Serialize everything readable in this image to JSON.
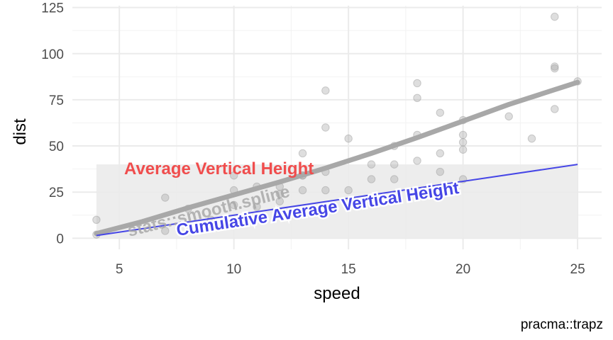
{
  "chart_data": {
    "type": "scatter",
    "xlabel": "speed",
    "ylabel": "dist",
    "caption": "pracma::trapz",
    "xlim": [
      2.95,
      26.05
    ],
    "ylim": [
      -6,
      126
    ],
    "xticks": [
      5,
      10,
      15,
      20,
      25
    ],
    "yticks": [
      0,
      25,
      50,
      75,
      100,
      125
    ],
    "grid": true,
    "points": [
      [
        4,
        2
      ],
      [
        4,
        10
      ],
      [
        7,
        4
      ],
      [
        7,
        22
      ],
      [
        8,
        16
      ],
      [
        9,
        10
      ],
      [
        10,
        18
      ],
      [
        10,
        26
      ],
      [
        10,
        34
      ],
      [
        11,
        17
      ],
      [
        11,
        28
      ],
      [
        12,
        14
      ],
      [
        12,
        20
      ],
      [
        12,
        24
      ],
      [
        12,
        28
      ],
      [
        13,
        26
      ],
      [
        13,
        34
      ],
      [
        13,
        34
      ],
      [
        13,
        46
      ],
      [
        14,
        26
      ],
      [
        14,
        36
      ],
      [
        14,
        60
      ],
      [
        14,
        80
      ],
      [
        15,
        20
      ],
      [
        15,
        26
      ],
      [
        15,
        54
      ],
      [
        16,
        32
      ],
      [
        16,
        40
      ],
      [
        17,
        32
      ],
      [
        17,
        40
      ],
      [
        17,
        50
      ],
      [
        18,
        42
      ],
      [
        18,
        56
      ],
      [
        18,
        76
      ],
      [
        18,
        84
      ],
      [
        19,
        36
      ],
      [
        19,
        46
      ],
      [
        19,
        68
      ],
      [
        20,
        32
      ],
      [
        20,
        48
      ],
      [
        20,
        52
      ],
      [
        20,
        56
      ],
      [
        20,
        64
      ],
      [
        22,
        66
      ],
      [
        23,
        54
      ],
      [
        24,
        70
      ],
      [
        24,
        92
      ],
      [
        24,
        93
      ],
      [
        24,
        120
      ],
      [
        25,
        85
      ]
    ],
    "spline": {
      "name": "stats::smooth.spline",
      "x": [
        4,
        6,
        8,
        10,
        12,
        14,
        16,
        18,
        20,
        22,
        24,
        25
      ],
      "y": [
        2.5,
        9,
        16.5,
        23.5,
        30.5,
        38,
        46,
        54.5,
        63.5,
        72.5,
        80.5,
        84.5
      ]
    },
    "average_region": {
      "label": "Average Vertical Height",
      "xmin": 4,
      "xmax": 25,
      "y": 40
    },
    "cumulative_average": {
      "label": "Cumulative Average Vertical Height",
      "x": [
        4,
        25
      ],
      "y": [
        1.5,
        40
      ]
    },
    "colors": {
      "average_label": "#f04d4d",
      "cumulative": "#4646e6",
      "spline": "#a8a8a8",
      "points": "#a0a0a0",
      "region": "#ebebeb"
    }
  }
}
